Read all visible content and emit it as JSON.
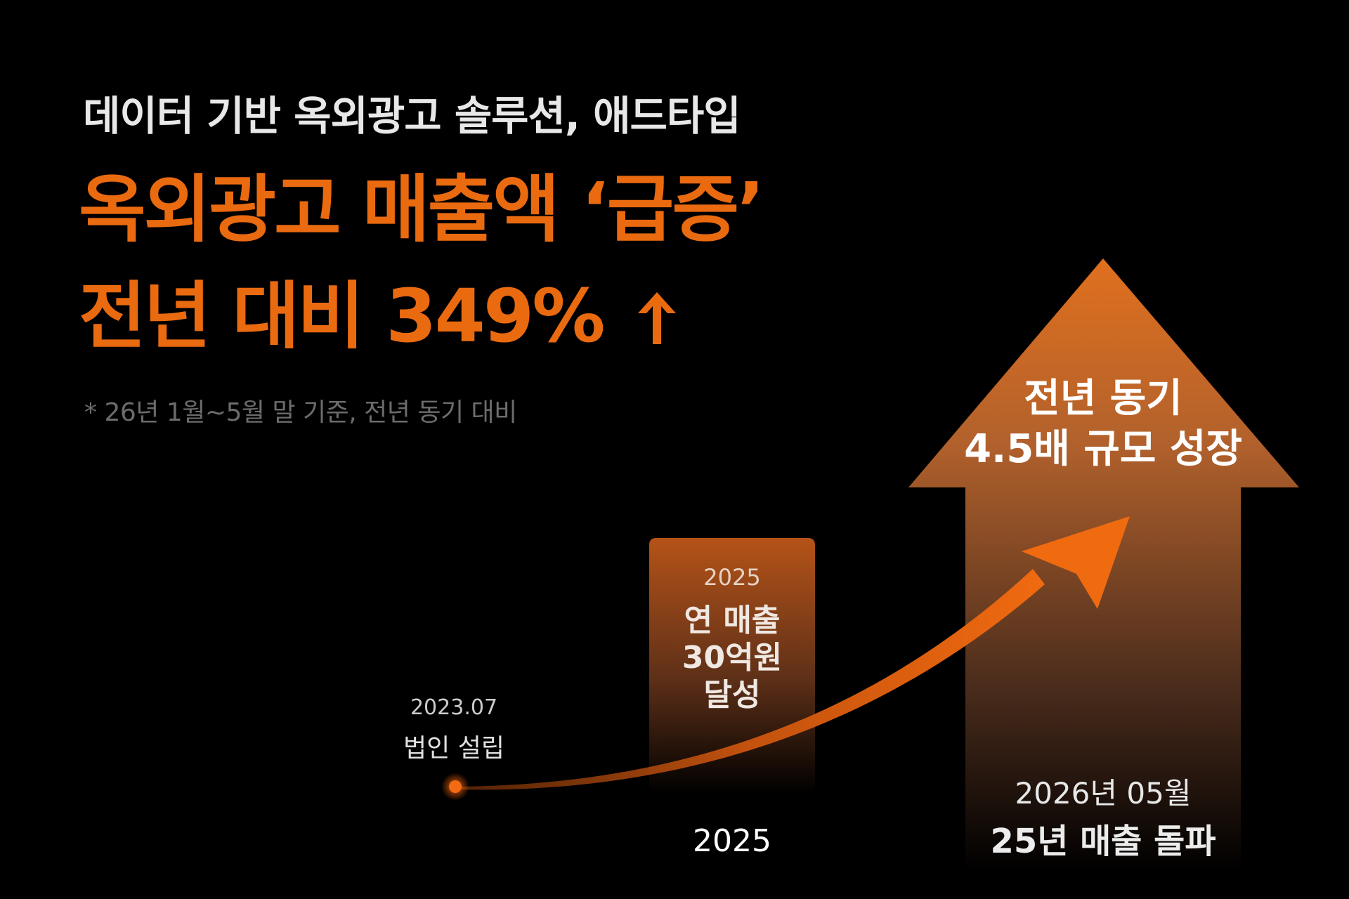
{
  "header": {
    "subtitle": "데이터 기반 옥외광고 솔루션, 애드타입",
    "headline_line1": "옥외광고 매출액 ‘급증’",
    "headline_line2": "전년 대비 349%",
    "footnote": "* 26년 1월~5월 말 기준, 전년 동기 대비"
  },
  "milestones": {
    "establishment": {
      "date": "2023.07",
      "label": "법인 설립"
    },
    "bar_2025": {
      "year": "2025",
      "label_lines": [
        "연 매출",
        "30억원",
        "달성"
      ],
      "axis_label": "2025"
    },
    "big_arrow": {
      "label_lines": [
        "전년 동기",
        "4.5배 규모 성장"
      ],
      "date": "2026년 05월",
      "label": "25년 매출 돌파"
    }
  },
  "colors": {
    "accent": "#ea6a10",
    "background": "#000000",
    "bar_top": "#b55318",
    "arrow_top": "#e0701e"
  },
  "icons": [
    "up-arrow-icon",
    "start-dot-icon",
    "growth-curve-arrow-icon"
  ]
}
